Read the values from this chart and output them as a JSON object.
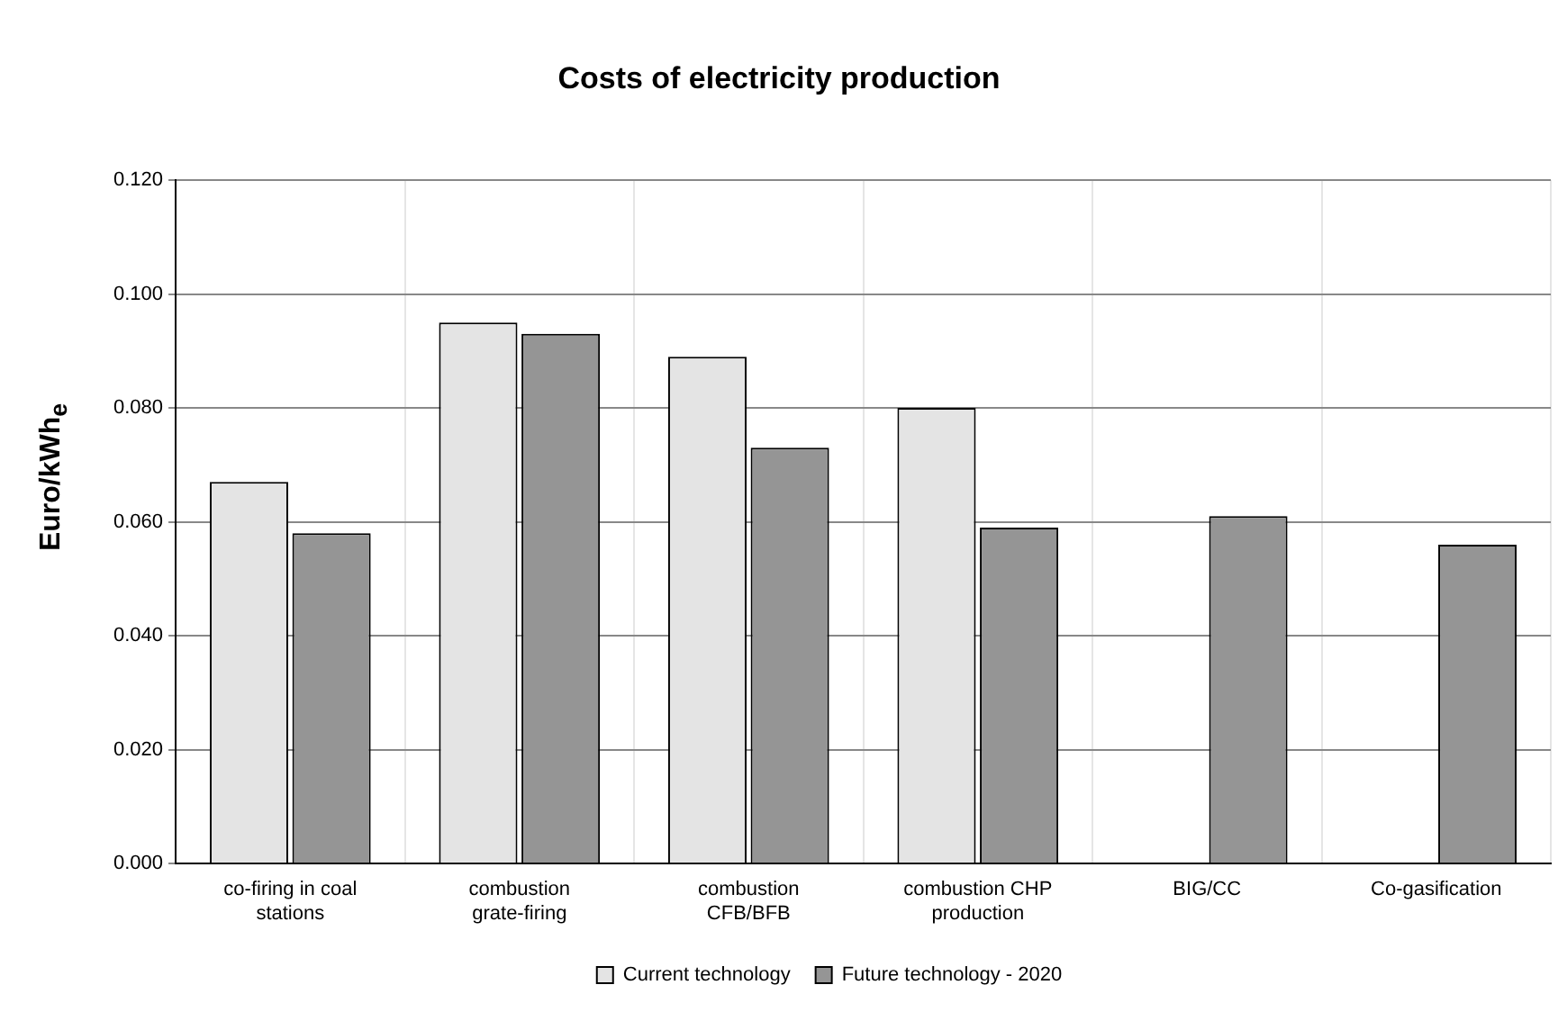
{
  "chart_data": {
    "type": "bar",
    "title": "Costs of electricity production",
    "ylabel": "Euro/kWh$_{e}$",
    "categories": [
      "co-firing in coal stations",
      "combustion grate-firing",
      "combustion CFB/BFB",
      "combustion CHP production",
      "BIG/CC",
      "Co-gasification"
    ],
    "series": [
      {
        "name": "Current technology",
        "color": "#e4e4e4",
        "values": [
          0.067,
          0.095,
          0.089,
          0.08,
          null,
          null
        ]
      },
      {
        "name": "Future technology - 2020",
        "color": "#959595",
        "values": [
          0.058,
          0.093,
          0.073,
          0.059,
          0.061,
          0.056
        ]
      }
    ],
    "ylim": [
      0,
      0.12
    ],
    "yticks": [
      {
        "value": 0,
        "label": "0.000"
      },
      {
        "value": 0.02,
        "label": "0.020"
      },
      {
        "value": 0.04,
        "label": "0.040"
      },
      {
        "value": 0.06,
        "label": "0.060"
      },
      {
        "value": 0.08,
        "label": "0.080"
      },
      {
        "value": 0.1,
        "label": "0.100"
      },
      {
        "value": 0.12,
        "label": "0.120"
      }
    ],
    "grid": true,
    "legend": "bottom"
  }
}
